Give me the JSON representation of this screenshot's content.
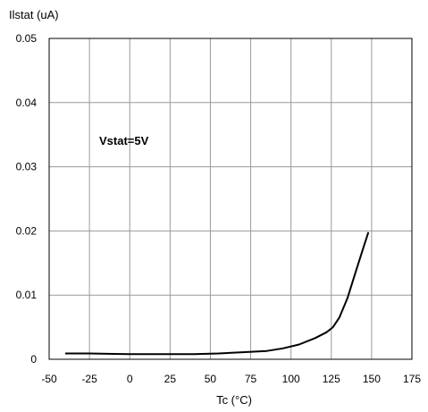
{
  "chart_data": {
    "type": "line",
    "ylabel": "Ilstat (uA)",
    "xlabel": "Tc (°C)",
    "annotation": "Vstat=5V",
    "xlim": [
      -50,
      175
    ],
    "ylim": [
      0,
      0.05
    ],
    "xticks": [
      -50,
      -25,
      0,
      25,
      50,
      75,
      100,
      125,
      150,
      175
    ],
    "yticks": [
      0,
      0.01,
      0.02,
      0.03,
      0.04,
      0.05
    ],
    "xtick_labels": [
      "-50",
      "-25",
      "0",
      "25",
      "50",
      "75",
      "100",
      "125",
      "150",
      "175"
    ],
    "ytick_labels": [
      "0",
      "0.01",
      "0.02",
      "0.03",
      "0.04",
      "0.05"
    ],
    "grid": true,
    "series": [
      {
        "x": [
          -40,
          -25,
          0,
          25,
          40,
          55,
          70,
          85,
          95,
          105,
          115,
          122,
          126,
          130,
          135,
          140,
          145,
          148
        ],
        "y": [
          0.0009,
          0.0009,
          0.0008,
          0.0008,
          0.0008,
          0.0009,
          0.0011,
          0.0013,
          0.0017,
          0.0023,
          0.0033,
          0.0042,
          0.005,
          0.0065,
          0.0095,
          0.0135,
          0.0175,
          0.0198
        ],
        "color": "#000000"
      }
    ]
  }
}
